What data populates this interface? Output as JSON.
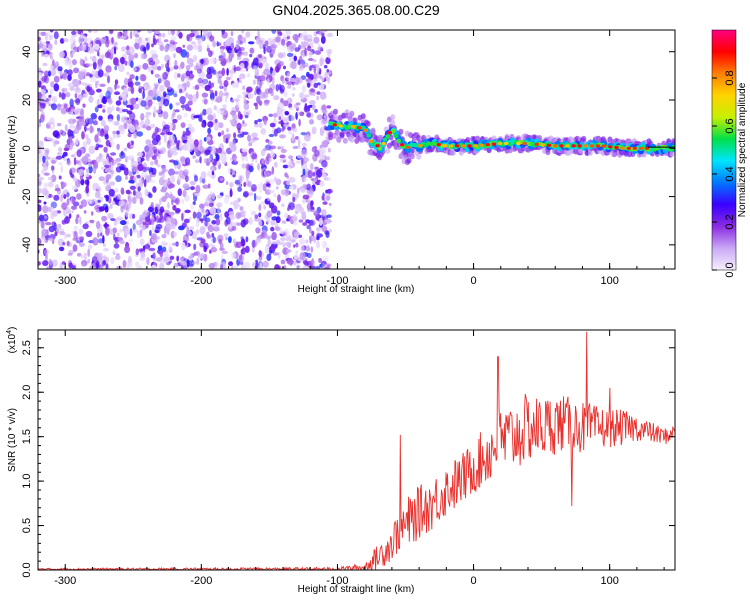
{
  "title": "GN04.2025.365.08.00.C29",
  "chart_data": [
    {
      "type": "heatmap",
      "xlabel": "Height of straight line (km)",
      "ylabel": "Frequency (Hz)",
      "xlim": [
        -320,
        148
      ],
      "ylim": [
        -50,
        49
      ],
      "xticks": [
        -300,
        -200,
        -100,
        0,
        100
      ],
      "yticks": [
        -40,
        -20,
        0,
        20,
        40
      ],
      "noise_region_x": [
        -320,
        -105
      ],
      "signal_ridge": {
        "x": [
          -105,
          -95,
          -88,
          -80,
          -75,
          -68,
          -60,
          -55,
          -50,
          -45,
          -40,
          -30,
          -20,
          -10,
          0,
          20,
          40,
          60,
          80,
          95,
          110,
          125,
          140,
          148
        ],
        "y": [
          10,
          9,
          9,
          8,
          3,
          0,
          8,
          3,
          0,
          1,
          1,
          2,
          1,
          1,
          1,
          2,
          2,
          1,
          1,
          1,
          0,
          0,
          0,
          0
        ]
      },
      "colorbar": {
        "label": "Normalized spectral amplitude",
        "ticks": [
          0.0,
          0.2,
          0.4,
          0.6,
          0.8
        ],
        "tick_labels": [
          "0.0",
          "0.2",
          "0.4",
          "0.6",
          "0.8"
        ],
        "range": [
          0,
          1
        ],
        "colormap": [
          "#f7f0ff",
          "#c9a8f5",
          "#8a2be2",
          "#3a00ff",
          "#0077ff",
          "#00e5ff",
          "#00e04a",
          "#c6f000",
          "#ffd400",
          "#ff8000",
          "#ff0000",
          "#ff0080"
        ]
      }
    },
    {
      "type": "line",
      "xlabel": "Height of straight line (km)",
      "ylabel": "SNR (10 * v/v)",
      "y_multiplier": "(x10",
      "y_multiplier_exp": "4",
      "y_multiplier_close": ")",
      "xlim": [
        -320,
        148
      ],
      "ylim": [
        0,
        2.7
      ],
      "xticks": [
        -300,
        -200,
        -100,
        0,
        100
      ],
      "yticks": [
        0.0,
        0.5,
        1.0,
        1.5,
        2.0,
        2.5
      ],
      "ytick_labels": [
        "0.0",
        "0.5",
        "1.0",
        "1.5",
        "2.0",
        "2.5"
      ],
      "color": "#e8302c",
      "series_envelope": {
        "x": [
          -320,
          -100,
          -80,
          -70,
          -60,
          -55,
          -50,
          -40,
          -30,
          -20,
          -10,
          0,
          10,
          20,
          30,
          40,
          50,
          60,
          70,
          80,
          90,
          100,
          110,
          120,
          130,
          140,
          148
        ],
        "base": [
          0.01,
          0.01,
          0.03,
          0.15,
          0.3,
          0.45,
          0.5,
          0.65,
          0.75,
          0.9,
          1.0,
          1.15,
          1.3,
          1.45,
          1.5,
          1.6,
          1.6,
          1.65,
          1.65,
          1.6,
          1.6,
          1.6,
          1.6,
          1.6,
          1.55,
          1.5,
          1.55
        ],
        "spread": [
          0.01,
          0.02,
          0.05,
          0.15,
          0.2,
          0.25,
          0.3,
          0.3,
          0.3,
          0.3,
          0.3,
          0.3,
          0.35,
          0.4,
          0.4,
          0.4,
          0.35,
          0.35,
          0.3,
          0.3,
          0.25,
          0.22,
          0.2,
          0.15,
          0.12,
          0.1,
          0.08
        ]
      },
      "spikes": [
        {
          "x": -54,
          "y": 1.52
        },
        {
          "x": 18,
          "y": 2.4
        },
        {
          "x": 83,
          "y": 2.68
        },
        {
          "x": 72,
          "y": 0.72
        },
        {
          "x": 100,
          "y": 2.05
        }
      ]
    }
  ]
}
